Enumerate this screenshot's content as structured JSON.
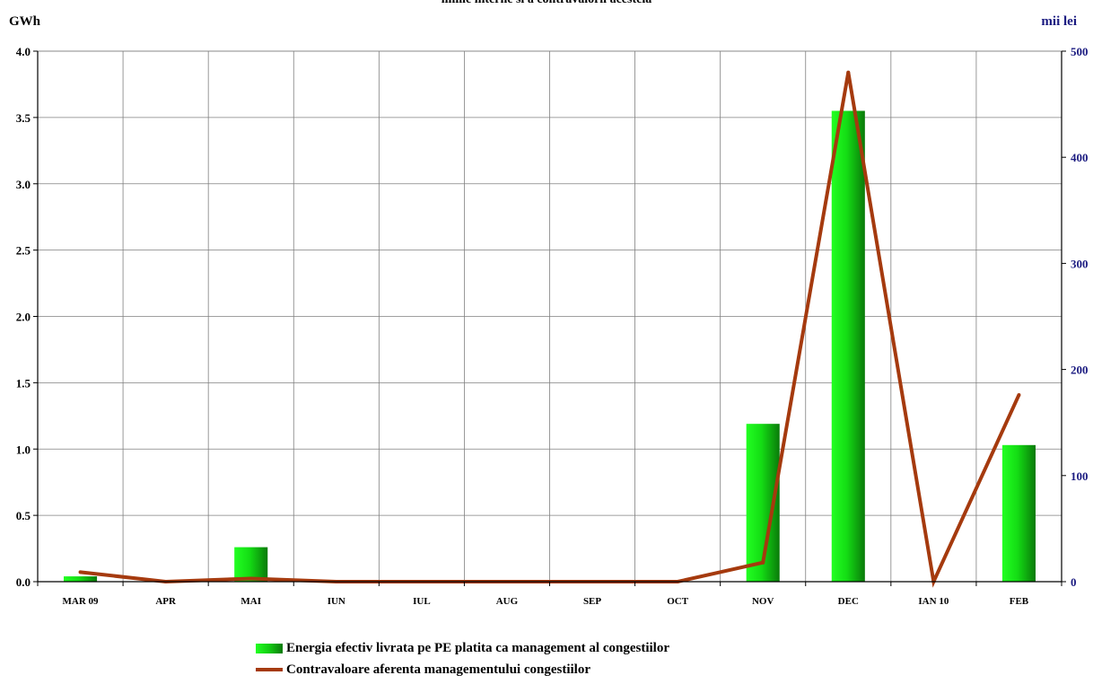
{
  "title": "liniile interne si a contravalorii acesteia",
  "left_unit": "GWh",
  "right_unit": "mii lei",
  "colors": {
    "bar_light": "#22ff22",
    "bar_dark": "#0a7a0a",
    "line": "#a53a0e",
    "right_axis_text": "#1a1a80"
  },
  "legend": {
    "bar_label": "Energia efectiv livrata pe PE platita ca management al congestiilor",
    "line_label": "Contravaloare aferenta managementului congestiilor"
  },
  "chart_data": {
    "type": "bar",
    "title": "liniile interne si a contravalorii acesteia",
    "categories": [
      "MAR 09",
      "APR",
      "MAI",
      "IUN",
      "IUL",
      "AUG",
      "SEP",
      "OCT",
      "NOV",
      "DEC",
      "IAN 10",
      "FEB"
    ],
    "y_left": {
      "label": "GWh",
      "min": 0,
      "max": 4.0,
      "ticks": [
        "0.0",
        "0.5",
        "1.0",
        "1.5",
        "2.0",
        "2.5",
        "3.0",
        "3.5",
        "4.0"
      ]
    },
    "y_right": {
      "label": "mii lei",
      "min": 0,
      "max": 500,
      "ticks": [
        "0",
        "100",
        "200",
        "300",
        "400",
        "500"
      ]
    },
    "grid": true,
    "legend_position": "bottom",
    "series": [
      {
        "name": "Energia efectiv livrata pe PE platita ca management al congestiilor",
        "type": "bar",
        "axis": "left",
        "values": [
          0.04,
          0,
          0.26,
          0,
          0,
          0,
          0,
          0,
          1.19,
          3.55,
          0,
          1.03
        ]
      },
      {
        "name": "Contravaloare aferenta managementului congestiilor",
        "type": "line",
        "axis": "right",
        "values": [
          9,
          0,
          3,
          0,
          0,
          0,
          0,
          0,
          18,
          480,
          0,
          176
        ]
      }
    ]
  }
}
